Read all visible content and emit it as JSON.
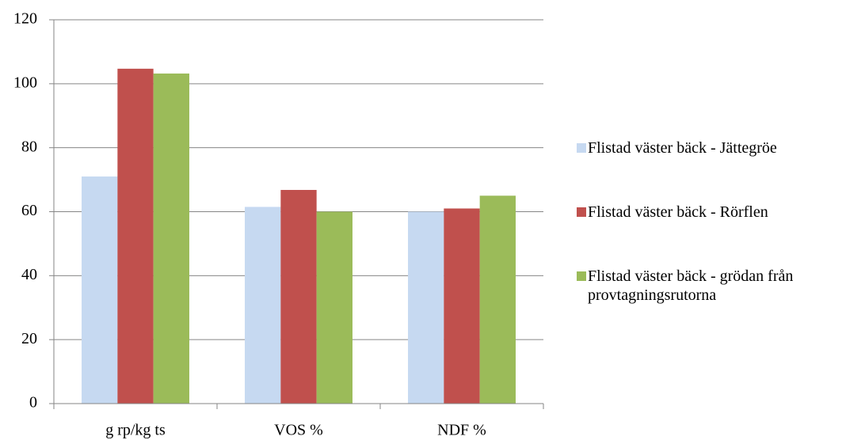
{
  "chart_data": {
    "type": "bar",
    "categories": [
      "g rp/kg ts",
      "VOS %",
      "NDF %"
    ],
    "series": [
      {
        "name": "Flistad väster bäck - Jättegröe",
        "color": "#c6d9f1",
        "values": [
          71,
          61.5,
          60
        ]
      },
      {
        "name": "Flistad väster bäck - Rörflen",
        "color": "#c0504d",
        "values": [
          104.7,
          66.8,
          61
        ]
      },
      {
        "name": "Flistad väster bäck - grödan från provtagningsrutorna",
        "color": "#9bbb59",
        "values": [
          103.2,
          60,
          65
        ]
      }
    ],
    "ylim": [
      0,
      120
    ],
    "yticks": [
      0,
      20,
      40,
      60,
      80,
      100,
      120
    ],
    "grid": true,
    "legend": "right"
  }
}
